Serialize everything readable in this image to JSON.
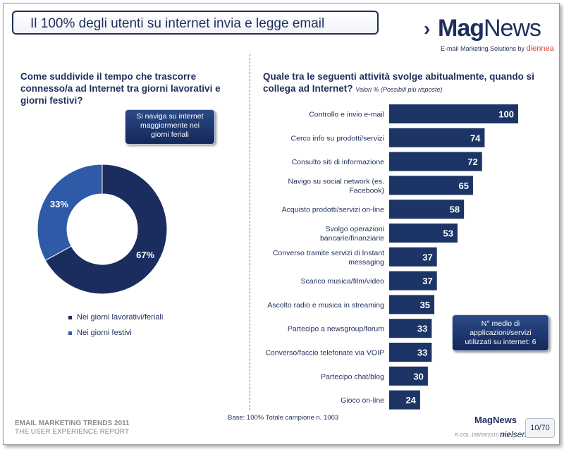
{
  "title": "Il 100% degli utenti su internet invia e legge email",
  "logo": {
    "mark": "›",
    "name_bold": "Mag",
    "name_light": "News",
    "tagline": "E-mail Marketing Solutions by",
    "brand": "diennea"
  },
  "left_question": "Come suddivide il tempo che trascorre connesso/a ad Internet tra giorni lavorativi e giorni festivi?",
  "left_callout": [
    "Si naviga su internet",
    "maggiormente nei",
    "giorni feriali"
  ],
  "right_question": "Quale tra le seguenti attività svolge abitualmente, quando si collega ad Internet?",
  "right_subtitle": "Valori % (Possibili più risposte)",
  "right_callout": [
    "N° medio di",
    "applicazioni/servizi",
    "utilizzati su internet: 6"
  ],
  "colors": {
    "dark": "#1b2d5e",
    "light": "#2e5aa8",
    "bar": "#1c3566",
    "accent": "#1f2f5c"
  },
  "chart_data": [
    {
      "type": "pie",
      "categories": [
        "Nei giorni lavorativi/feriali",
        "Nei giorni festivi"
      ],
      "values": [
        67,
        33
      ],
      "value_labels": [
        "67%",
        "33%"
      ],
      "legend_position": "bottom"
    },
    {
      "type": "bar",
      "orientation": "horizontal",
      "categories": [
        [
          "Controllo e invio e-mail"
        ],
        [
          "Cerco info su prodotti/servizi"
        ],
        [
          "Consulto siti di informazione"
        ],
        [
          "Navigo su social network (es.",
          "Facebook)"
        ],
        [
          "Acquisto prodotti/servizi on-line"
        ],
        [
          "Svolgo operazioni",
          "bancarie/finanziarie"
        ],
        [
          "Converso tramite servizi di Instant",
          "messaging"
        ],
        [
          "Scarico musica/film/video"
        ],
        [
          "Ascolto radio e musica in streaming"
        ],
        [
          "Partecipo a newsgroup/forum"
        ],
        [
          "Converso/faccio telefonate via VOIP"
        ],
        [
          "Partecipo chat/blog"
        ],
        [
          "Gioco on-line"
        ]
      ],
      "values": [
        100,
        74,
        72,
        65,
        58,
        53,
        37,
        37,
        35,
        33,
        33,
        30,
        24
      ],
      "xlim": [
        0,
        100
      ]
    }
  ],
  "footer": {
    "base": "Base: 100% Totale campione n. 1003",
    "report_line1": "EMAIL MARKETING TRENDS 2011",
    "report_line2": "THE USER EXPERIENCE REPORT",
    "logo": "MagNews",
    "small": "R.COL.188/09/2010 SRV",
    "partner": "nielsen",
    "page": "10/70"
  }
}
